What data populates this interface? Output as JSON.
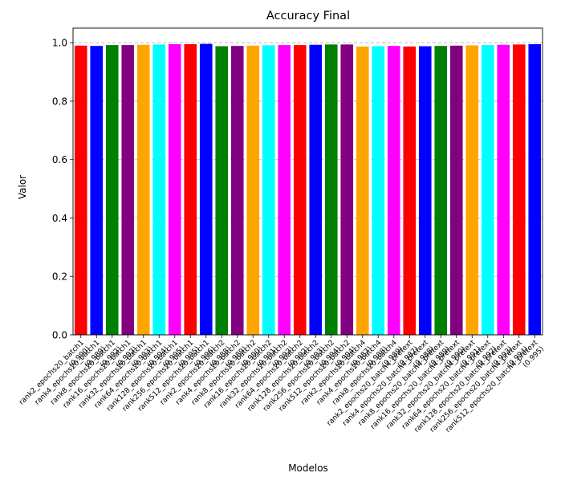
{
  "chart_data": {
    "type": "bar",
    "title": "Accuracy Final",
    "xlabel": "Modelos",
    "ylabel": "Valor",
    "ylim": [
      0,
      1.05
    ],
    "yticks": [
      0.0,
      0.2,
      0.4,
      0.6,
      0.8,
      1.0
    ],
    "ytick_labels": [
      "0.0",
      "0.2",
      "0.4",
      "0.6",
      "0.8",
      "1.0"
    ],
    "grid": "y-dashed",
    "categories": [
      "rank2_epochs20_batch1\n(0.990)",
      "rank4_epochs20_batch1\n(0.989)",
      "rank8_epochs20_batch1\n(0.992)",
      "rank16_epochs20_batch1\n(0.992)",
      "rank32_epochs20_batch1\n(0.993)",
      "rank64_epochs20_batch1\n(0.994)",
      "rank128_epochs20_batch1\n(0.995)",
      "rank256_epochs20_batch1\n(0.995)",
      "rank512_epochs20_batch1\n(0.996)",
      "rank2_epochs20_batch2\n(0.988)",
      "rank4_epochs20_batch2\n(0.989)",
      "rank8_epochs20_batch2\n(0.990)",
      "rank16_epochs20_batch2\n(0.991)",
      "rank32_epochs20_batch2\n(0.992)",
      "rank64_epochs20_batch2\n(0.992)",
      "rank128_epochs20_batch2\n(0.993)",
      "rank256_epochs20_batch2\n(0.994)",
      "rank512_epochs20_batch2\n(0.994)",
      "rank2_epochs20_batch4\n(0.987)",
      "rank4_epochs20_batch4\n(0.988)",
      "rank8_epochs20_batch4\n(0.989)",
      "rank2_epochs20_batch4_pretext\n(0.987)",
      "rank4_epochs20_batch4_pretext\n(0.988)",
      "rank8_epochs20_batch4_pretext\n(0.989)",
      "rank16_epochs20_batch4_pretext\n(0.990)",
      "rank32_epochs20_batch4_pretext\n(0.991)",
      "rank64_epochs20_batch4_pretext\n(0.992)",
      "rank128_epochs20_batch4_pretext\n(0.993)",
      "rank256_epochs20_batch4_pretext\n(0.994)",
      "rank512_epochs20_batch4_pretext\n(0.995)"
    ],
    "values": [
      0.99,
      0.989,
      0.992,
      0.992,
      0.993,
      0.994,
      0.995,
      0.995,
      0.996,
      0.988,
      0.989,
      0.99,
      0.991,
      0.992,
      0.992,
      0.993,
      0.994,
      0.994,
      0.987,
      0.988,
      0.989,
      0.987,
      0.988,
      0.989,
      0.99,
      0.991,
      0.992,
      0.993,
      0.994,
      0.995
    ],
    "colors": [
      "#ff0000",
      "#0000ff",
      "#008000",
      "#800080",
      "#ffa500",
      "#00ffff",
      "#ff00ff",
      "#ff0000",
      "#0000ff",
      "#008000",
      "#800080",
      "#ffa500",
      "#00ffff",
      "#ff00ff",
      "#ff0000",
      "#0000ff",
      "#008000",
      "#800080",
      "#ffa500",
      "#00ffff",
      "#ff00ff",
      "#ff0000",
      "#0000ff",
      "#008000",
      "#800080",
      "#ffa500",
      "#00ffff",
      "#ff00ff",
      "#ff0000",
      "#0000ff"
    ]
  }
}
